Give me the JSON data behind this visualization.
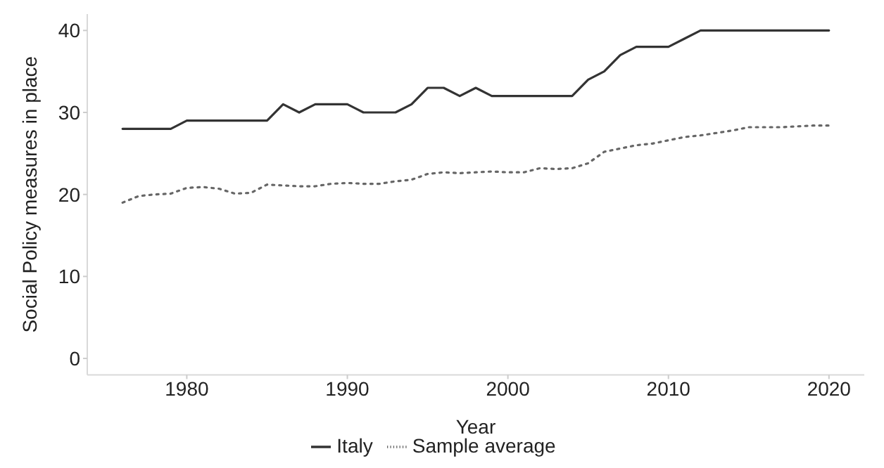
{
  "chart_data": {
    "type": "line",
    "xlabel": "Year",
    "ylabel": "Social Policy measures in place",
    "x": [
      1976,
      1977,
      1978,
      1979,
      1980,
      1981,
      1982,
      1983,
      1984,
      1985,
      1986,
      1987,
      1988,
      1989,
      1990,
      1991,
      1992,
      1993,
      1994,
      1995,
      1996,
      1997,
      1998,
      1999,
      2000,
      2001,
      2002,
      2003,
      2004,
      2005,
      2006,
      2007,
      2008,
      2009,
      2010,
      2011,
      2012,
      2013,
      2014,
      2015,
      2016,
      2017,
      2018,
      2019,
      2020
    ],
    "series": [
      {
        "name": "Italy",
        "color": "#333333",
        "line_style": "solid",
        "values": [
          28,
          28,
          28,
          28,
          29,
          29,
          29,
          29,
          29,
          29,
          31,
          30,
          31,
          31,
          31,
          30,
          30,
          30,
          31,
          33,
          33,
          32,
          33,
          32,
          32,
          32,
          32,
          32,
          32,
          34,
          35,
          37,
          38,
          38,
          38,
          39,
          40,
          40,
          40,
          40,
          40,
          40,
          40,
          40,
          40
        ]
      },
      {
        "name": "Sample average",
        "color": "#666666",
        "line_style": "dotted",
        "values": [
          19,
          19.8,
          20,
          20.1,
          20.8,
          20.9,
          20.7,
          20.1,
          20.2,
          21.2,
          21.1,
          21,
          21,
          21.3,
          21.4,
          21.3,
          21.3,
          21.6,
          21.8,
          22.5,
          22.7,
          22.6,
          22.7,
          22.8,
          22.7,
          22.7,
          23.2,
          23.1,
          23.2,
          23.8,
          25.2,
          25.6,
          26,
          26.2,
          26.6,
          27,
          27.2,
          27.5,
          27.8,
          28.2,
          28.2,
          28.2,
          28.3,
          28.4,
          28.4
        ]
      }
    ],
    "xlim": [
      1973.8,
      2022.2
    ],
    "xticks": [
      1980,
      1990,
      2000,
      2010,
      2020
    ],
    "ylim": [
      -2,
      42
    ],
    "yticks": [
      0,
      10,
      20,
      30,
      40
    ],
    "grid": false,
    "legend": "bottom",
    "marker": "none"
  }
}
